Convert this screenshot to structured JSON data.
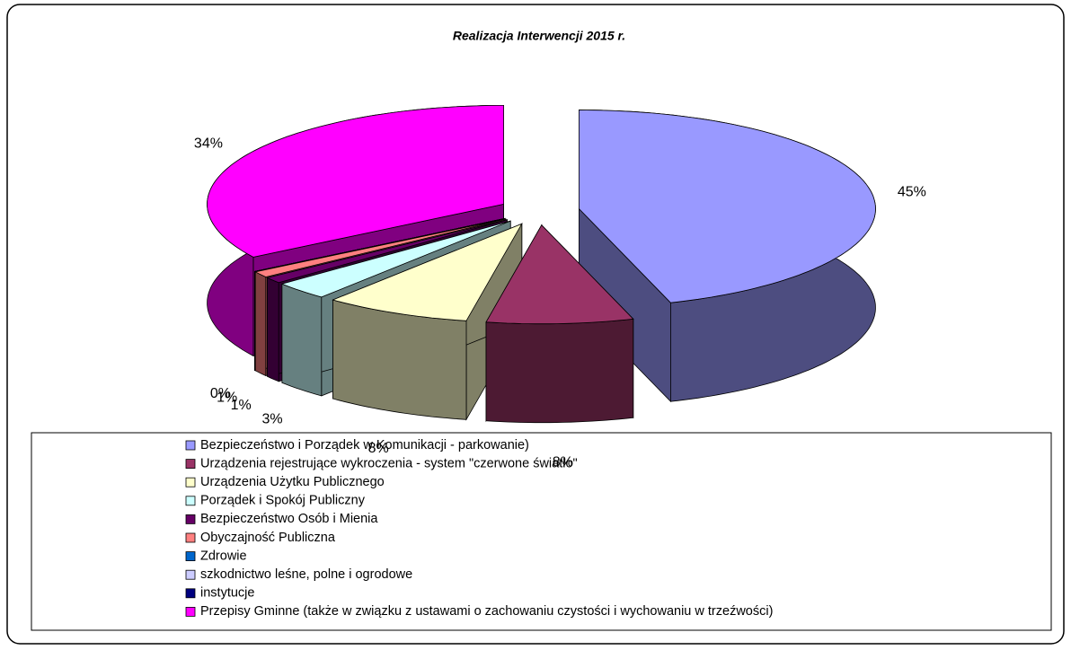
{
  "chart_data": {
    "type": "pie",
    "title": "Realizacja Interwencji 2015 r.",
    "categories": [
      "Bezpieczeństwo i Porządek w Komunikacji - parkowanie)",
      "Urządzenia rejestrujące wykroczenia - system \"czerwone światło\"",
      "Urządzenia Użytku Publicznego",
      "Porządek i Spokój Publiczny",
      "Bezpieczeństwo  Osób i Mienia",
      "Obyczajność Publiczna",
      "Zdrowie",
      "szkodnictwo leśne, polne i ogrodowe",
      "instytucje",
      "Przepisy Gminne (także w związku z ustawami o zachowaniu czystości i wychowaniu w trzeźwości)"
    ],
    "values": [
      45,
      8,
      8,
      3,
      1,
      1,
      0,
      0,
      0,
      34
    ],
    "value_labels": [
      "45%",
      "8%",
      "8%",
      "3%",
      "1%",
      "1%",
      "0%",
      null,
      null,
      "34%"
    ],
    "colors": [
      "#9999ff",
      "#993366",
      "#ffffcc",
      "#ccffff",
      "#660066",
      "#ff8080",
      "#0066cc",
      "#ccccff",
      "#000080",
      "#ff00ff"
    ],
    "legend": "bottom"
  }
}
